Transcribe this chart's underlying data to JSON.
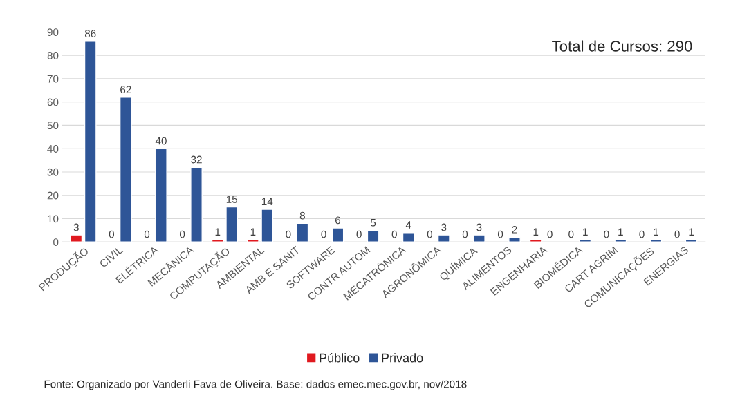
{
  "chart_data": {
    "type": "bar",
    "categories": [
      "PRODUÇÃO",
      "CIVIL",
      "ELÉTRICA",
      "MECÂNICA",
      "COMPUTAÇÃO",
      "AMBIENTAL",
      "AMB E SANIT",
      "SOFTWARE",
      "CONTR AUTOM",
      "MECATRÔNICA",
      "AGRONÔMICA",
      "QUÍMICA",
      "ALIMENTOS",
      "ENGENHARIA",
      "BIOMÉDICA",
      "CART AGRIM",
      "COMUNICAÇÕES",
      "ENERGIAS"
    ],
    "series": [
      {
        "name": "Público",
        "color": "#e0191f",
        "values": [
          3,
          0,
          0,
          0,
          1,
          1,
          0,
          0,
          0,
          0,
          0,
          0,
          0,
          1,
          0,
          0,
          0,
          0
        ]
      },
      {
        "name": "Privado",
        "color": "#2e5597",
        "values": [
          86,
          62,
          40,
          32,
          15,
          14,
          8,
          6,
          5,
          4,
          3,
          3,
          2,
          0,
          1,
          1,
          1,
          1
        ]
      }
    ],
    "ylim": [
      0,
      90
    ],
    "yticks": [
      0,
      10,
      20,
      30,
      40,
      50,
      60,
      70,
      80,
      90
    ],
    "grid": "y",
    "legend": "bottom",
    "data_labels": true,
    "annotations": [
      "Total de Cursos: 290",
      "Fonte: Organizado por Vanderli Fava de Oliveira. Base: dados emec.mec.gov.br, nov/2018"
    ]
  }
}
